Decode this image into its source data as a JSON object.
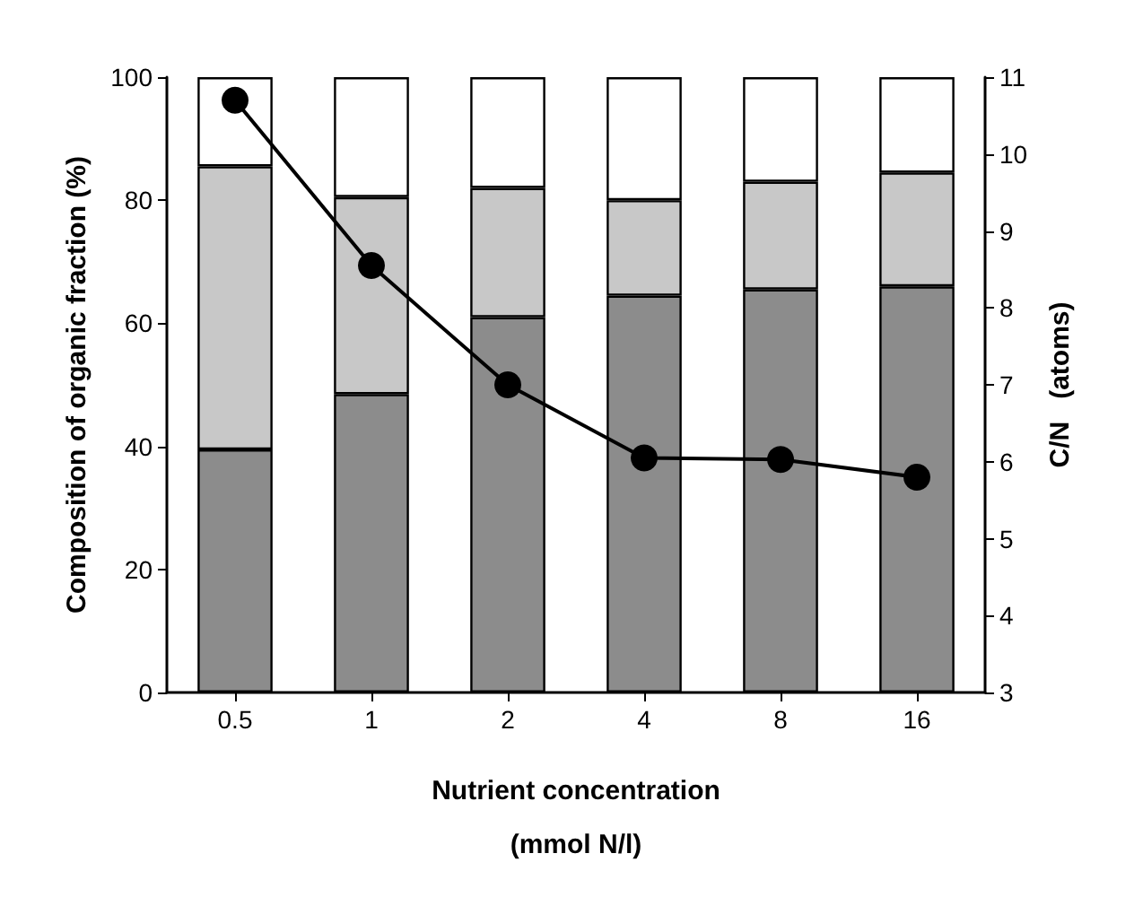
{
  "chart_data": {
    "type": "bar",
    "stacked": true,
    "xlabel": "Nutrient concentration\n(mmol N/l)",
    "ylabel": "Composition of organic fraction (%)",
    "y2label": "C/N   (atoms)",
    "categories": [
      "0.5",
      "1",
      "2",
      "4",
      "8",
      "16"
    ],
    "series": [
      {
        "color": "#8c8c8c",
        "values": [
          39.5,
          48.5,
          61,
          64.5,
          65.5,
          66
        ]
      },
      {
        "color": "#c8c8c8",
        "values": [
          46,
          32,
          21,
          15.5,
          17.5,
          18.5
        ]
      },
      {
        "color": "#ffffff",
        "values": [
          14.5,
          19.5,
          18,
          20,
          17,
          15.5
        ]
      },
      {
        "type": "line",
        "axis": "y2",
        "color": "#000000",
        "values": [
          10.7,
          8.55,
          7.0,
          6.05,
          6.03,
          5.8
        ]
      }
    ],
    "ylim": [
      0,
      100
    ],
    "yticks": [
      0,
      20,
      40,
      60,
      80,
      100
    ],
    "y2lim": [
      3,
      11
    ],
    "y2ticks": [
      3,
      4,
      5,
      6,
      7,
      8,
      9,
      10,
      11
    ],
    "grid": false,
    "marker": "circle",
    "line_style": "solid"
  }
}
